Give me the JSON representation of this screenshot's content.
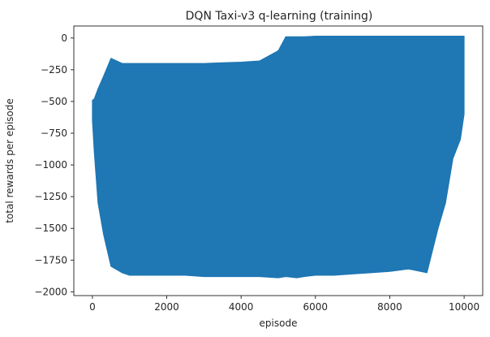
{
  "chart_data": {
    "type": "line",
    "title": "DQN Taxi-v3 q-learning (training)",
    "xlabel": "episode",
    "ylabel": "total rewards per episode",
    "xlim": [
      -500,
      10500
    ],
    "ylim": [
      -2030,
      95
    ],
    "x_ticks": [
      0,
      2000,
      4000,
      6000,
      8000,
      10000
    ],
    "y_ticks": [
      0,
      -250,
      -500,
      -750,
      -1000,
      -1250,
      -1500,
      -1750,
      -2000
    ],
    "grid": false,
    "legend": "none",
    "color": "#1f77b4",
    "series": [
      {
        "x": [
          0,
          50,
          150,
          300,
          500,
          800,
          1000,
          1500,
          2000,
          2500,
          3000,
          3500,
          4000,
          4500,
          5000,
          5200,
          5500,
          5700,
          6000,
          6500,
          7000,
          7500,
          8000,
          8500,
          9000,
          9300,
          9500,
          9700,
          9900,
          10000
        ],
        "upper": [
          -490,
          -480,
          -400,
          -300,
          -160,
          -200,
          -200,
          -200,
          -200,
          -200,
          -200,
          -195,
          -190,
          -180,
          -100,
          10,
          10,
          10,
          15,
          15,
          15,
          15,
          15,
          15,
          15,
          15,
          15,
          15,
          15,
          15
        ],
        "lower": [
          -650,
          -900,
          -1300,
          -1550,
          -1800,
          -1850,
          -1870,
          -1870,
          -1870,
          -1870,
          -1880,
          -1880,
          -1880,
          -1880,
          -1890,
          -1880,
          -1890,
          -1880,
          -1870,
          -1870,
          -1860,
          -1850,
          -1840,
          -1820,
          -1850,
          -1500,
          -1300,
          -950,
          -800,
          -600
        ]
      }
    ]
  }
}
